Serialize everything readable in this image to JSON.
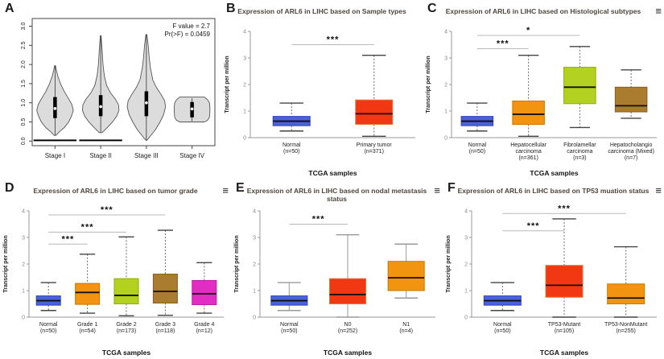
{
  "figure": {
    "background": "#ffffff"
  },
  "icons": {
    "menu": "≡"
  },
  "chart_data": [
    {
      "panel": "A",
      "type": "violin",
      "title": "",
      "annotations": [
        "F value = 2.7",
        "Pr(>F) = 0.0459"
      ],
      "categories": [
        "Stage I",
        "Stage II",
        "Stage III",
        "Stage IV"
      ],
      "ylim": [
        0,
        3.0
      ],
      "yticks": [
        0,
        0.5,
        1.0,
        1.5,
        2.0,
        2.5,
        3.0
      ],
      "ytick_labels": [
        "0.0",
        "0.5",
        "1.0",
        "1.5",
        "2.0",
        "2.5",
        "3.0"
      ],
      "fill": "#dcdcdc",
      "violins": [
        {
          "min": 0.15,
          "max": 1.97,
          "q1": 0.6,
          "median": 0.85,
          "q3": 1.15,
          "baseline": true,
          "profile": [
            [
              0.15,
              0.02
            ],
            [
              0.25,
              0.1
            ],
            [
              0.35,
              0.2
            ],
            [
              0.5,
              0.3
            ],
            [
              0.65,
              0.36
            ],
            [
              0.8,
              0.4
            ],
            [
              0.95,
              0.37
            ],
            [
              1.1,
              0.3
            ],
            [
              1.3,
              0.2
            ],
            [
              1.5,
              0.12
            ],
            [
              1.7,
              0.06
            ],
            [
              1.85,
              0.03
            ],
            [
              1.97,
              0.01
            ]
          ]
        },
        {
          "min": 0.22,
          "max": 2.75,
          "q1": 0.65,
          "median": 0.9,
          "q3": 1.2,
          "baseline": true,
          "profile": [
            [
              0.22,
              0.03
            ],
            [
              0.35,
              0.14
            ],
            [
              0.5,
              0.26
            ],
            [
              0.65,
              0.35
            ],
            [
              0.8,
              0.4
            ],
            [
              0.95,
              0.39
            ],
            [
              1.1,
              0.32
            ],
            [
              1.25,
              0.22
            ],
            [
              1.45,
              0.13
            ],
            [
              1.7,
              0.08
            ],
            [
              2.0,
              0.05
            ],
            [
              2.3,
              0.035
            ],
            [
              2.55,
              0.02
            ],
            [
              2.75,
              0.008
            ]
          ]
        },
        {
          "min": 0.02,
          "max": 2.78,
          "q1": 0.65,
          "median": 1.0,
          "q3": 1.3,
          "baseline": false,
          "profile": [
            [
              0.02,
              0.01
            ],
            [
              0.15,
              0.1
            ],
            [
              0.3,
              0.2
            ],
            [
              0.5,
              0.3
            ],
            [
              0.7,
              0.38
            ],
            [
              0.9,
              0.42
            ],
            [
              1.05,
              0.4
            ],
            [
              1.2,
              0.33
            ],
            [
              1.4,
              0.22
            ],
            [
              1.6,
              0.14
            ],
            [
              1.9,
              0.09
            ],
            [
              2.2,
              0.06
            ],
            [
              2.5,
              0.04
            ],
            [
              2.78,
              0.01
            ]
          ]
        },
        {
          "min": 0.52,
          "max": 1.12,
          "q1": 0.62,
          "median": 0.84,
          "q3": 1.02,
          "baseline": false,
          "profile": [
            [
              0.5,
              0.27
            ],
            [
              0.54,
              0.34
            ],
            [
              0.62,
              0.38
            ],
            [
              0.75,
              0.39
            ],
            [
              0.9,
              0.39
            ],
            [
              1.0,
              0.38
            ],
            [
              1.08,
              0.34
            ],
            [
              1.15,
              0.27
            ]
          ]
        }
      ]
    },
    {
      "panel": "B",
      "type": "box",
      "title": "Expression of ARL6 in LIHC based on Sample types",
      "has_menu": false,
      "ylabel": "Transcript per million",
      "xlabel": "TCGA samples",
      "ylim": [
        0,
        4
      ],
      "yticks": [
        0,
        1,
        2,
        3,
        4
      ],
      "whisker_style": "dashed",
      "groups": [
        {
          "label": "Normal",
          "n": "(n=50)",
          "label_lines": [
            "Normal",
            "(n=50)"
          ],
          "color": "#4a62d8",
          "border": "#3141c4",
          "low": 0.25,
          "q1": 0.45,
          "median": 0.62,
          "q3": 0.8,
          "high": 1.3
        },
        {
          "label": "Primary tumor",
          "n": "(n=371)",
          "label_lines": [
            "Primary tumor",
            "(n=371)"
          ],
          "color": "#f23813",
          "border": "#df7a3a",
          "low": 0.05,
          "q1": 0.5,
          "median": 0.9,
          "q3": 1.42,
          "high": 3.1
        }
      ],
      "significance": [
        {
          "from": 0,
          "to": 1,
          "y": 3.5,
          "stars": "***"
        }
      ]
    },
    {
      "panel": "C",
      "type": "box",
      "title": "Expression of ARL6 in LIHC based on Histological subtypes",
      "has_menu": true,
      "ylabel": "Transcript per million",
      "xlabel": "TCGA samples",
      "ylim": [
        0,
        4
      ],
      "yticks": [
        0,
        1,
        2,
        3,
        4
      ],
      "whisker_style": "dashed",
      "groups": [
        {
          "label": "Normal",
          "n": "(n=50)",
          "label_lines": [
            "Normal",
            "(n=50)"
          ],
          "color": "#4a62d8",
          "border": "#3141c4",
          "low": 0.25,
          "q1": 0.45,
          "median": 0.62,
          "q3": 0.8,
          "high": 1.3
        },
        {
          "label": "Hepatocellular carcinoma",
          "n": "(n=361)",
          "label_lines": [
            "Hepatocellular",
            "carcinoma",
            "(n=361)"
          ],
          "color": "#f2940f",
          "border": "#c87800",
          "low": 0.05,
          "q1": 0.5,
          "median": 0.88,
          "q3": 1.38,
          "high": 3.1
        },
        {
          "label": "Fibrolamellar carcinoma",
          "n": "(n=3)",
          "label_lines": [
            "Fibrolamellar",
            "carcinoma",
            "(n=3)"
          ],
          "color": "#b2d121",
          "border": "#8fae00",
          "low": 0.38,
          "q1": 1.28,
          "median": 1.9,
          "q3": 2.65,
          "high": 3.43
        },
        {
          "label": "Hepatocholangio carcinoma (Mixed)",
          "n": "(n=7)",
          "label_lines": [
            "Hepatocholangio",
            "carcinoma (Mixed)",
            "(n=7)"
          ],
          "color": "#a97c2f",
          "border": "#85601e",
          "low": 0.73,
          "q1": 0.97,
          "median": 1.2,
          "q3": 1.9,
          "high": 2.55
        }
      ],
      "significance": [
        {
          "from": 0,
          "to": 1,
          "y": 3.35,
          "stars": "***"
        },
        {
          "from": 0,
          "to": 2,
          "y": 3.85,
          "stars": "*"
        }
      ]
    },
    {
      "panel": "D",
      "type": "box",
      "title": "Expression of ARL6 in LIHC based on tumor grade",
      "has_menu": true,
      "ylabel": "Transcript per million",
      "xlabel": "TCGA samples",
      "ylim": [
        0,
        4
      ],
      "yticks": [
        0,
        1,
        2,
        3,
        4
      ],
      "whisker_style": "dashed",
      "groups": [
        {
          "label": "Normal",
          "n": "(n=50)",
          "label_lines": [
            "Normal",
            "(n=50)"
          ],
          "color": "#4a62d8",
          "border": "#3141c4",
          "low": 0.25,
          "q1": 0.45,
          "median": 0.62,
          "q3": 0.8,
          "high": 1.3
        },
        {
          "label": "Grade 1",
          "n": "(n=54)",
          "label_lines": [
            "Grade 1",
            "(n=54)"
          ],
          "color": "#f2940f",
          "border": "#c87800",
          "low": 0.15,
          "q1": 0.48,
          "median": 0.93,
          "q3": 1.27,
          "high": 2.37
        },
        {
          "label": "Grade 2",
          "n": "(n=173)",
          "label_lines": [
            "Grade 2",
            "(n=173)"
          ],
          "color": "#b2d121",
          "border": "#8fae00",
          "low": 0.05,
          "q1": 0.5,
          "median": 0.82,
          "q3": 1.45,
          "high": 3.02
        },
        {
          "label": "Grade 3",
          "n": "(n=118)",
          "label_lines": [
            "Grade 3",
            "(n=118)"
          ],
          "color": "#a97c2f",
          "border": "#85601e",
          "low": 0.07,
          "q1": 0.53,
          "median": 0.97,
          "q3": 1.62,
          "high": 3.27
        },
        {
          "label": "Grade 4",
          "n": "(n=12)",
          "label_lines": [
            "Grade 4",
            "(n=12)"
          ],
          "color": "#e32cc4",
          "border": "#b81f9e",
          "low": 0.15,
          "q1": 0.47,
          "median": 0.88,
          "q3": 1.38,
          "high": 2.05
        }
      ],
      "significance": [
        {
          "from": 0,
          "to": 1,
          "y": 2.75,
          "stars": "***"
        },
        {
          "from": 0,
          "to": 2,
          "y": 3.2,
          "stars": "***"
        },
        {
          "from": 0,
          "to": 3,
          "y": 3.85,
          "stars": "***"
        }
      ]
    },
    {
      "panel": "E",
      "type": "box",
      "title": "Expression of ARL6 in LIHC based on nodal metastasis status",
      "has_menu": true,
      "ylabel": "Transcript per million",
      "xlabel": "TCGA samples",
      "ylim": [
        0,
        4
      ],
      "yticks": [
        0,
        1,
        2,
        3,
        4
      ],
      "whisker_style": "solid",
      "groups": [
        {
          "label": "Normal",
          "n": "(n=50)",
          "label_lines": [
            "Normal",
            "(n=50)"
          ],
          "color": "#4a62d8",
          "border": "#3141c4",
          "low": 0.25,
          "q1": 0.45,
          "median": 0.62,
          "q3": 0.8,
          "high": 1.3
        },
        {
          "label": "N0",
          "n": "(n=252)",
          "label_lines": [
            "N0",
            "(n=252)"
          ],
          "color": "#f23813",
          "border": "#df7a3a",
          "low": 0.0,
          "q1": 0.5,
          "median": 0.85,
          "q3": 1.45,
          "high": 3.1
        },
        {
          "label": "N1",
          "n": "(n=4)",
          "label_lines": [
            "N1",
            "(n=4)"
          ],
          "color": "#f2940f",
          "border": "#c87800",
          "low": 0.72,
          "q1": 1.0,
          "median": 1.48,
          "q3": 2.1,
          "high": 2.75
        }
      ],
      "significance": [
        {
          "from": 0,
          "to": 1,
          "y": 3.5,
          "stars": "***"
        }
      ]
    },
    {
      "panel": "F",
      "type": "box",
      "title": "Expression of ARL6 in LIHC based on TP53 muation status",
      "has_menu": true,
      "ylabel": "Transcript per million",
      "xlabel": "TCGA samples",
      "ylim": [
        0,
        4
      ],
      "yticks": [
        0,
        1,
        2,
        3,
        4
      ],
      "whisker_style": "dashed",
      "groups": [
        {
          "label": "Normal",
          "n": "(n=50)",
          "label_lines": [
            "Normal",
            "(n=50)"
          ],
          "color": "#4a62d8",
          "border": "#3141c4",
          "low": 0.25,
          "q1": 0.45,
          "median": 0.62,
          "q3": 0.8,
          "high": 1.3
        },
        {
          "label": "TP53-Mutant",
          "n": "(n=105)",
          "label_lines": [
            "TP53-Mutant",
            "(n=105)"
          ],
          "color": "#f23813",
          "border": "#df7a3a",
          "low": 0.0,
          "q1": 0.75,
          "median": 1.2,
          "q3": 1.95,
          "high": 3.7
        },
        {
          "label": "TP53-NonMutant",
          "n": "(n=255)",
          "label_lines": [
            "TP53-NonMutant",
            "(n=255)"
          ],
          "color": "#f2940f",
          "border": "#c87800",
          "low": 0.0,
          "q1": 0.5,
          "median": 0.72,
          "q3": 1.25,
          "high": 2.65
        }
      ],
      "significance": [
        {
          "from": 0,
          "to": 1,
          "y": 3.25,
          "stars": "***"
        },
        {
          "from": 0,
          "to": 2,
          "y": 3.9,
          "stars": "***"
        }
      ]
    }
  ]
}
